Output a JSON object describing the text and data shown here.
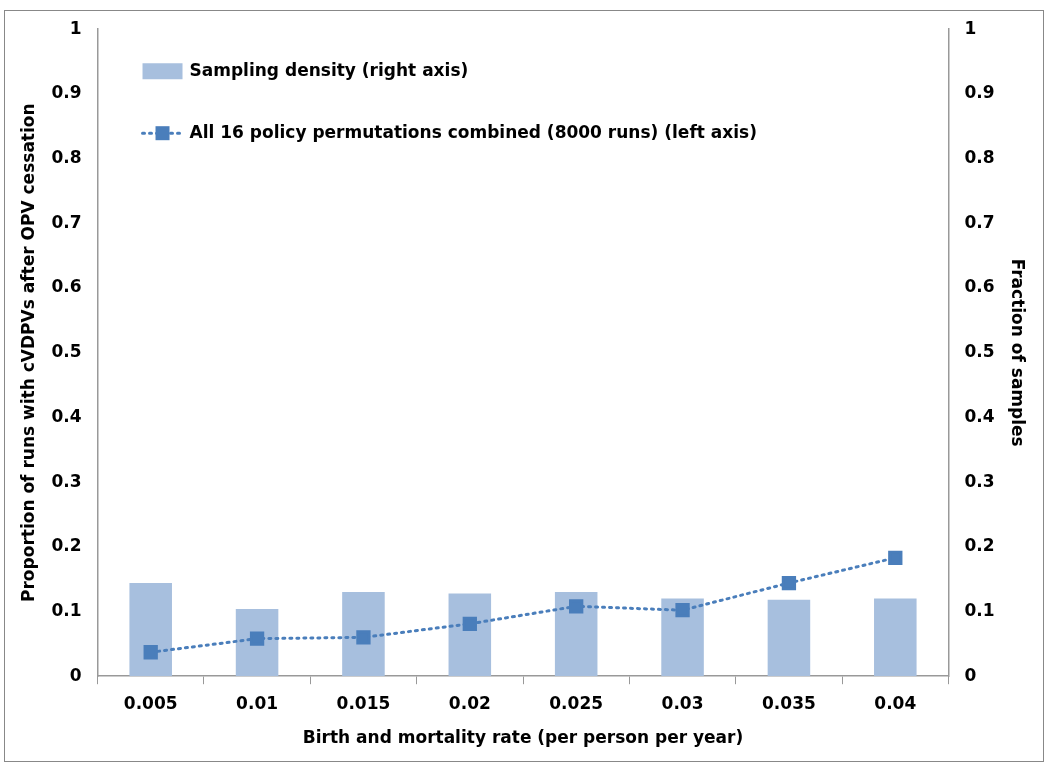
{
  "chart_data": {
    "type": "bar",
    "xlabel": "Birth and mortality rate (per person per year)",
    "ylabel": "Proportion of runs with cVDPVs after OPV cessation",
    "y2label": "Fraction of samples",
    "categories": [
      "0.005",
      "0.01",
      "0.015",
      "0.02",
      "0.025",
      "0.03",
      "0.035",
      "0.04"
    ],
    "series": [
      {
        "name": "Sampling density (right axis)",
        "axis": "y2",
        "color": "#a7bfde",
        "values": [
          0.144,
          0.104,
          0.13,
          0.128,
          0.13,
          0.12,
          0.118,
          0.12
        ]
      },
      {
        "name": "All 16 policy permutations combined (8000 runs) (left axis)",
        "type": "line",
        "color": "#4a7ebb",
        "marker": "square",
        "line_style": "dotted",
        "values": [
          0.037,
          0.058,
          0.06,
          0.081,
          0.108,
          0.102,
          0.144,
          0.183
        ]
      }
    ],
    "ylim": [
      0,
      1
    ],
    "yticks": [
      0,
      0.1,
      0.2,
      0.3,
      0.4,
      0.5,
      0.6,
      0.7,
      0.8,
      0.9,
      1
    ],
    "y2lim": [
      0,
      1
    ],
    "y2ticks": [
      0,
      0.1,
      0.2,
      0.3,
      0.4,
      0.5,
      0.6,
      0.7,
      0.8,
      0.9,
      1
    ],
    "grid": false,
    "legend": "top left"
  }
}
